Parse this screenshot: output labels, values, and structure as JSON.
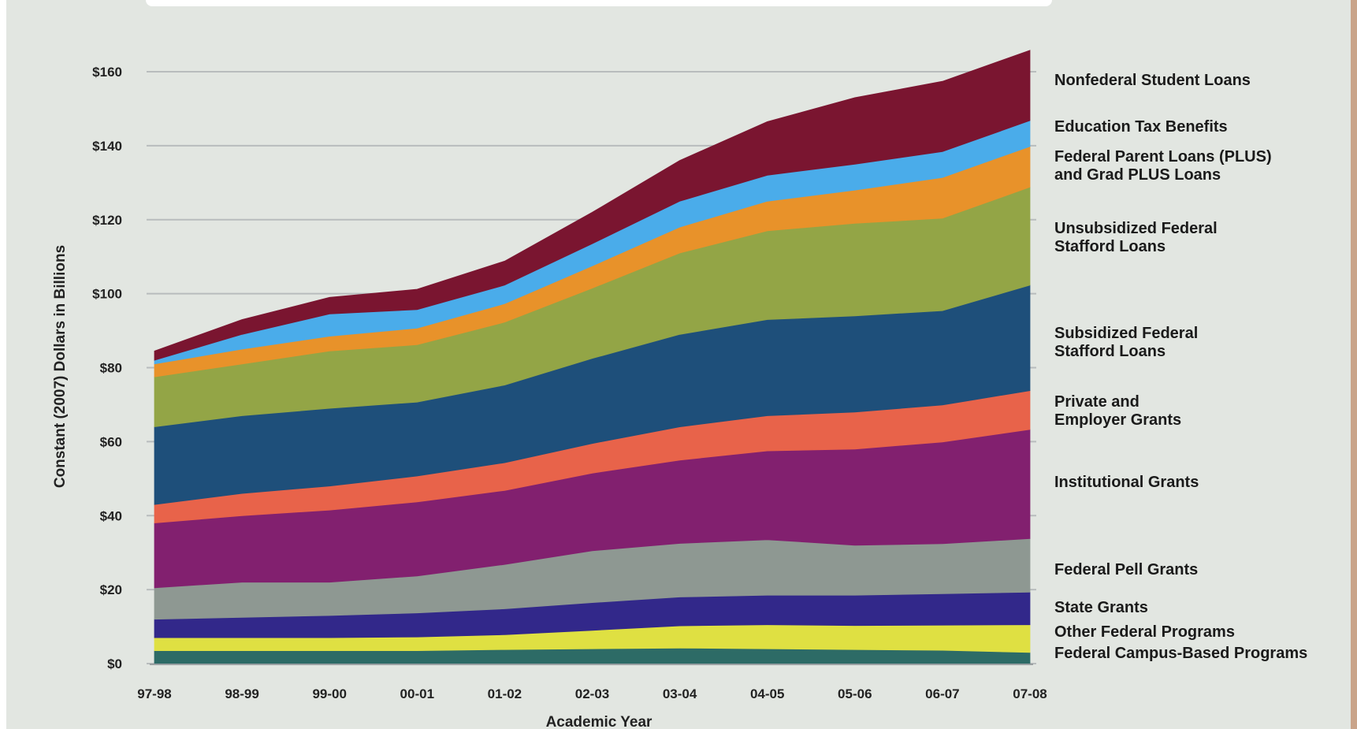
{
  "chart_data": {
    "type": "area",
    "stacked": true,
    "title": "",
    "xlabel": "Academic Year",
    "ylabel": "Constant (2007) Dollars in Billions",
    "ylim": [
      0,
      160
    ],
    "yticks": [
      0,
      20,
      40,
      60,
      80,
      100,
      120,
      140,
      160
    ],
    "ytick_labels": [
      "$0",
      "$20",
      "$40",
      "$60",
      "$80",
      "$100",
      "$120",
      "$140",
      "$160"
    ],
    "grid": true,
    "legend_placement": "right",
    "categories": [
      "97-98",
      "98-99",
      "99-00",
      "00-01",
      "01-02",
      "02-03",
      "03-04",
      "04-05",
      "05-06",
      "06-07",
      "07-08"
    ],
    "series": [
      {
        "name": "Federal Campus-Based Programs",
        "color": "#2d6b66",
        "values": [
          3.5,
          3.5,
          3.5,
          3.5,
          3.8,
          4.0,
          4.2,
          4.0,
          3.8,
          3.6,
          3.0
        ]
      },
      {
        "name": "Other Federal Programs",
        "color": "#dfe042",
        "values": [
          3.5,
          3.5,
          3.5,
          3.7,
          4.0,
          5.0,
          6.0,
          6.5,
          6.5,
          6.8,
          7.5
        ]
      },
      {
        "name": "State Grants",
        "color": "#32288a",
        "values": [
          5.0,
          5.5,
          6.0,
          6.5,
          7.0,
          7.5,
          7.8,
          8.0,
          8.2,
          8.5,
          8.8
        ]
      },
      {
        "name": "Federal Pell Grants",
        "color": "#8e9892",
        "values": [
          8.5,
          9.5,
          9.0,
          10.0,
          12.0,
          14.0,
          14.5,
          15.0,
          13.5,
          13.5,
          14.5
        ]
      },
      {
        "name": "Institutional Grants",
        "color": "#82206f",
        "values": [
          17.5,
          18.0,
          19.5,
          20.0,
          20.0,
          21.0,
          22.5,
          24.0,
          26.0,
          27.5,
          29.5
        ]
      },
      {
        "name": "Private and Employer Grants",
        "color": "#e8634a",
        "values": [
          5.0,
          6.0,
          6.5,
          7.0,
          7.5,
          8.0,
          9.0,
          9.5,
          10.0,
          10.0,
          10.5
        ]
      },
      {
        "name": "Subsidized Federal Stafford Loans",
        "color": "#1e4f7a",
        "values": [
          21.0,
          21.0,
          21.0,
          20.0,
          21.0,
          23.0,
          25.0,
          26.0,
          26.0,
          25.5,
          28.5
        ]
      },
      {
        "name": "Unsubsidized Federal Stafford Loans",
        "color": "#93a546",
        "values": [
          13.5,
          14.0,
          15.5,
          15.5,
          17.0,
          19.0,
          22.0,
          24.0,
          25.0,
          25.0,
          26.5
        ]
      },
      {
        "name": "Federal Parent Loans (PLUS) and Grad PLUS Loans",
        "color": "#e8922a",
        "values": [
          3.5,
          4.0,
          4.0,
          4.5,
          5.0,
          6.0,
          7.0,
          8.0,
          9.0,
          11.0,
          11.0
        ]
      },
      {
        "name": "Education Tax Benefits",
        "color": "#4aacea",
        "values": [
          1.0,
          4.0,
          6.0,
          5.0,
          5.0,
          6.0,
          7.0,
          7.0,
          7.0,
          7.0,
          7.0
        ]
      },
      {
        "name": "Nonfederal Student Loans",
        "color": "#7a1530",
        "values": [
          2.5,
          4.0,
          4.5,
          5.5,
          6.5,
          8.5,
          11.0,
          14.5,
          18.0,
          19.0,
          19.0
        ]
      }
    ],
    "legend_labels": [
      {
        "series": 10,
        "lines": [
          "Nonfederal Student Loans"
        ]
      },
      {
        "series": 9,
        "lines": [
          "Education Tax Benefits"
        ]
      },
      {
        "series": 8,
        "lines": [
          "Federal Parent Loans (PLUS)",
          "and Grad PLUS Loans"
        ]
      },
      {
        "series": 7,
        "lines": [
          "Unsubsidized Federal",
          "Stafford Loans"
        ]
      },
      {
        "series": 6,
        "lines": [
          "Subsidized Federal",
          "Stafford Loans"
        ]
      },
      {
        "series": 5,
        "lines": [
          "Private and",
          "Employer Grants"
        ]
      },
      {
        "series": 4,
        "lines": [
          "Institutional Grants"
        ]
      },
      {
        "series": 3,
        "lines": [
          "Federal Pell Grants"
        ]
      },
      {
        "series": 2,
        "lines": [
          "State Grants"
        ]
      },
      {
        "series": 1,
        "lines": [
          "Other Federal Programs"
        ]
      },
      {
        "series": 0,
        "lines": [
          "Federal Campus-Based Programs"
        ]
      }
    ]
  }
}
